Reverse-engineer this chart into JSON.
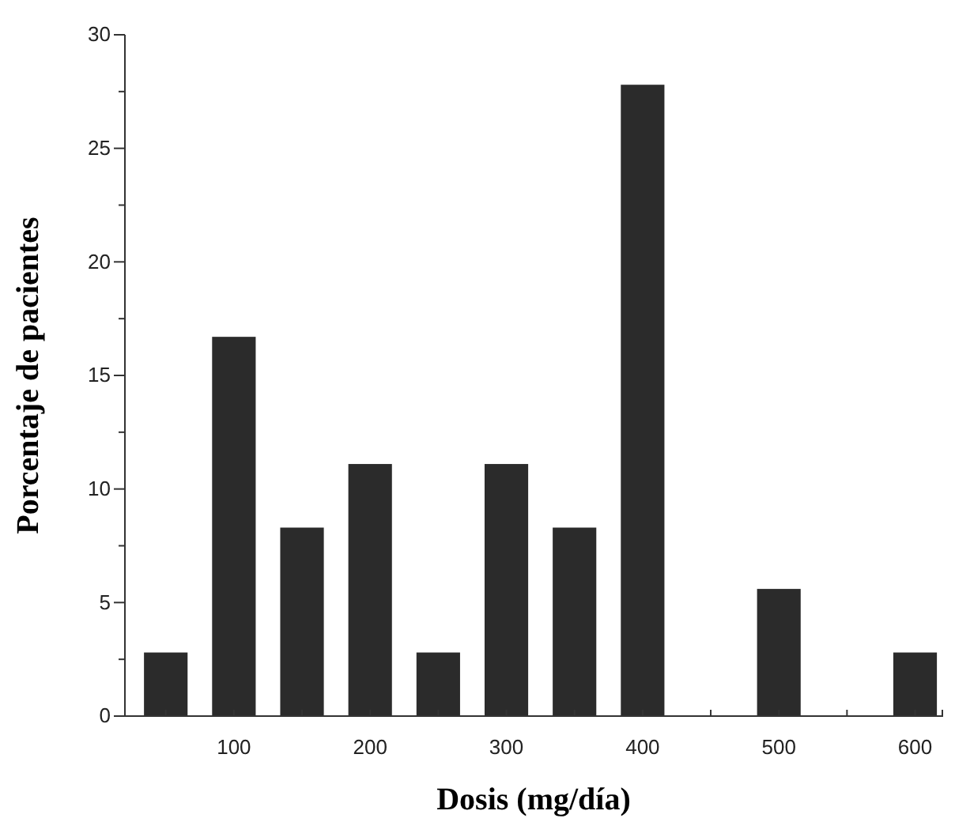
{
  "chart_data": {
    "type": "bar",
    "xlabel": "Dosis (mg/día)",
    "ylabel": "Porcentaje de pacientes",
    "x": [
      50,
      100,
      150,
      200,
      250,
      300,
      350,
      400,
      500,
      600
    ],
    "values": [
      2.8,
      16.7,
      8.3,
      11.1,
      2.8,
      11.1,
      8.3,
      27.8,
      5.6,
      2.8
    ],
    "color": "#2b2b2b",
    "xlim": [
      20,
      620
    ],
    "xticks": [
      {
        "value": 50,
        "label": null
      },
      100,
      {
        "value": 150,
        "label": null
      },
      200,
      {
        "value": 250,
        "label": null
      },
      300,
      {
        "value": 350,
        "label": null
      },
      400,
      {
        "value": 450,
        "label": null
      },
      500,
      {
        "value": 550,
        "label": null
      },
      600
    ],
    "ylim": [
      0,
      30
    ],
    "yticks": [
      0,
      {
        "value": 2.5,
        "label": null
      },
      5,
      {
        "value": 7.5,
        "label": null
      },
      10,
      {
        "value": 12.5,
        "label": null
      },
      15,
      {
        "value": 17.5,
        "label": null
      },
      20,
      {
        "value": 22.5,
        "label": null
      },
      25,
      {
        "value": 27.5,
        "label": null
      },
      30
    ],
    "grid": false
  }
}
